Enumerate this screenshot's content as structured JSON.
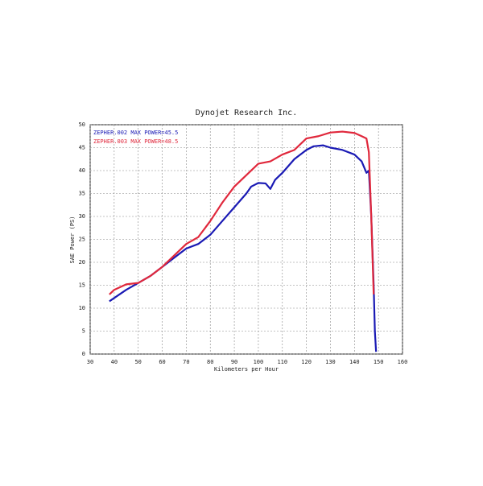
{
  "chart_data": {
    "type": "line",
    "title": "Dynojet Research Inc.",
    "x_label": "Kilometers per Hour",
    "y_label": "SAE Power (PS)",
    "xlim": [
      30,
      160
    ],
    "xticks": [
      30,
      40,
      50,
      60,
      70,
      80,
      90,
      100,
      110,
      120,
      130,
      140,
      150,
      160
    ],
    "ylim": [
      0,
      50
    ],
    "yticks": [
      0,
      5,
      10,
      15,
      20,
      25,
      30,
      35,
      40,
      45,
      50
    ],
    "grid": true,
    "legend": "upper left",
    "series": [
      {
        "name": "ZEPHER.002  MAX POWER=45.5",
        "color": "#1a1ab4",
        "x": [
          38,
          45,
          50,
          55,
          60,
          65,
          70,
          75,
          80,
          85,
          90,
          95,
          97,
          100,
          103,
          105,
          107,
          110,
          115,
          120,
          123,
          127,
          130,
          135,
          140,
          143,
          145,
          146,
          147,
          148,
          148.5,
          149
        ],
        "values": [
          11.5,
          14,
          15.5,
          17,
          19,
          21,
          23,
          24,
          26,
          29,
          32,
          35,
          36.5,
          37.3,
          37.2,
          36,
          38,
          39.5,
          42.5,
          44.5,
          45.3,
          45.5,
          45,
          44.5,
          43.5,
          42,
          39.5,
          40,
          30,
          15,
          5,
          0.5
        ]
      },
      {
        "name": "ZEPHER.003  MAX POWER=48.5",
        "color": "#e0283c",
        "x": [
          38,
          40,
          45,
          50,
          55,
          60,
          65,
          70,
          75,
          80,
          85,
          90,
          95,
          100,
          105,
          110,
          115,
          120,
          125,
          130,
          135,
          140,
          143,
          145,
          146,
          147,
          148
        ],
        "values": [
          13,
          14,
          15.2,
          15.5,
          17,
          19,
          21.5,
          24,
          25.5,
          29,
          33,
          36.5,
          39,
          41.5,
          42,
          43.5,
          44.5,
          47,
          47.5,
          48.3,
          48.5,
          48.2,
          47.5,
          47,
          44,
          30,
          13
        ]
      }
    ]
  }
}
